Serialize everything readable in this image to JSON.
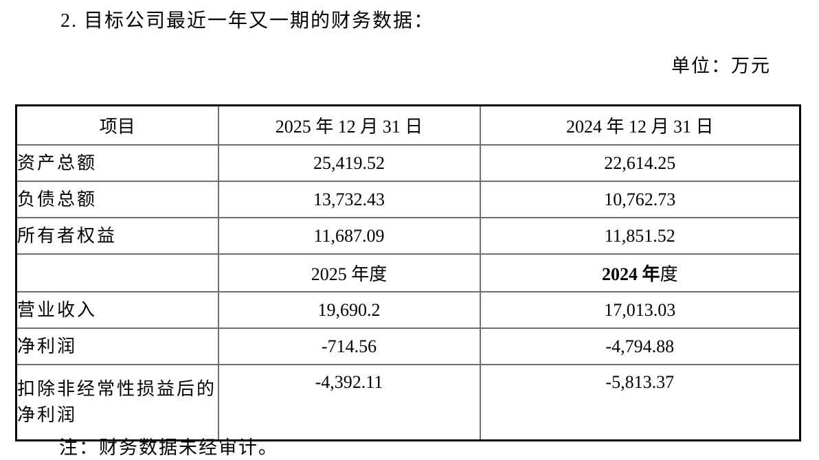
{
  "page": {
    "title": "2. 目标公司最近一年又一期的财务数据：",
    "unit_label": "单位：万元",
    "note": "注：财务数据未经审计。"
  },
  "table": {
    "header": {
      "item": "项目",
      "col_2025": "2025 年 12 月 31 日",
      "col_2024": "2024 年 12 月 31 日"
    },
    "balance_rows": [
      {
        "label": "资产总额",
        "v2025": "25,419.52",
        "v2024": "22,614.25"
      },
      {
        "label": "负债总额",
        "v2025": "13,732.43",
        "v2024": "10,762.73"
      },
      {
        "label": "所有者权益",
        "v2025": "11,687.09",
        "v2024": "11,851.52"
      }
    ],
    "period_header": {
      "col_2025": "2025 年度",
      "col_2024_bold": "2024 年",
      "col_2024_rest": "度"
    },
    "income_rows": [
      {
        "label": "营业收入",
        "v2025": "19,690.2",
        "v2024": "17,013.03"
      },
      {
        "label": "净利润",
        "v2025": "-714.56",
        "v2024": "-4,794.88"
      },
      {
        "label": "扣除非经常性损益后的净利润",
        "v2025": "-4,392.11",
        "v2024": "-5,813.37"
      }
    ]
  }
}
